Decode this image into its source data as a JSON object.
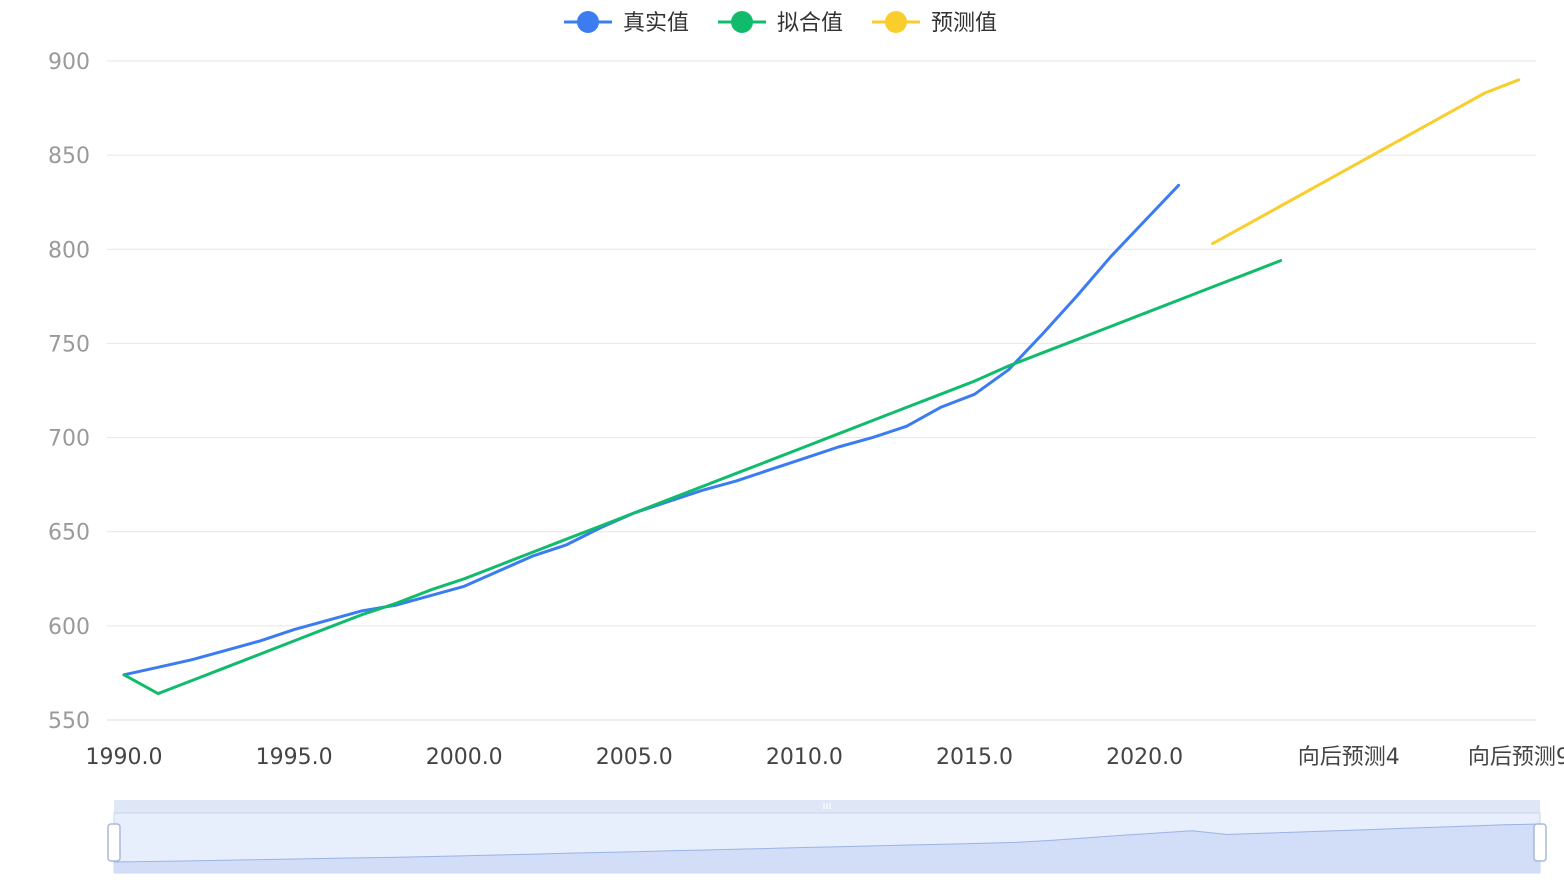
{
  "chart_data": {
    "type": "line",
    "legend": {
      "placement": "top-center",
      "items": [
        {
          "label": "真实值",
          "color": "#3b7cf0"
        },
        {
          "label": "拟合值",
          "color": "#10bc6c"
        },
        {
          "label": "预测值",
          "color": "#f9cd2b"
        }
      ]
    },
    "x_categories": [
      "1990.0",
      "1991.0",
      "1992.0",
      "1993.0",
      "1994.0",
      "1995.0",
      "1996.0",
      "1997.0",
      "1998.0",
      "1999.0",
      "2000.0",
      "2001.0",
      "2002.0",
      "2003.0",
      "2004.0",
      "2005.0",
      "2006.0",
      "2007.0",
      "2008.0",
      "2009.0",
      "2010.0",
      "2011.0",
      "2012.0",
      "2013.0",
      "2014.0",
      "2015.0",
      "2016.0",
      "2017.0",
      "2018.0",
      "2019.0",
      "2020.0",
      "2021.0",
      "向后预测0",
      "向后预测1",
      "向后预测2",
      "向后预测3",
      "向后预测4",
      "向后预测5",
      "向后预测6",
      "向后预测7",
      "向后预测8",
      "向后预测9"
    ],
    "x_tick_labels": [
      "1990.0",
      "1995.0",
      "2000.0",
      "2005.0",
      "2010.0",
      "2015.0",
      "2020.0",
      "向后预测4",
      "向后预测9"
    ],
    "y_axis": {
      "min": 550,
      "max": 900,
      "ticks": [
        900,
        850,
        800,
        750,
        700,
        650,
        600,
        550
      ],
      "grid": true
    },
    "series": [
      {
        "name": "真实值",
        "color": "#3b7cf0",
        "values": [
          574,
          578,
          582,
          587,
          592,
          598,
          603,
          608,
          611,
          616,
          621,
          629,
          637,
          643,
          652,
          660,
          666,
          672,
          677,
          683,
          689,
          695,
          700,
          706,
          716,
          723,
          736,
          755,
          775,
          796,
          815,
          834,
          null,
          null,
          null,
          null,
          null,
          null,
          null,
          null,
          null,
          null
        ]
      },
      {
        "name": "拟合值",
        "color": "#10bc6c",
        "values": [
          574,
          564,
          571,
          578,
          585,
          592,
          599,
          606,
          612,
          619,
          625,
          632,
          639,
          646,
          653,
          660,
          667,
          674,
          681,
          688,
          695,
          702,
          709,
          716,
          723,
          730,
          738,
          745,
          752,
          759,
          766,
          773,
          780,
          787,
          794,
          null,
          null,
          null,
          null,
          null,
          null,
          null
        ]
      },
      {
        "name": "预测值",
        "color": "#f9cd2b",
        "values": [
          null,
          null,
          null,
          null,
          null,
          null,
          null,
          null,
          null,
          null,
          null,
          null,
          null,
          null,
          null,
          null,
          null,
          null,
          null,
          null,
          null,
          null,
          null,
          null,
          null,
          null,
          null,
          null,
          null,
          null,
          null,
          null,
          803,
          813,
          823,
          833,
          843,
          853,
          863,
          873,
          883,
          890
        ]
      }
    ],
    "data_zoom": {
      "start_percent": 0,
      "end_percent": 100
    }
  }
}
